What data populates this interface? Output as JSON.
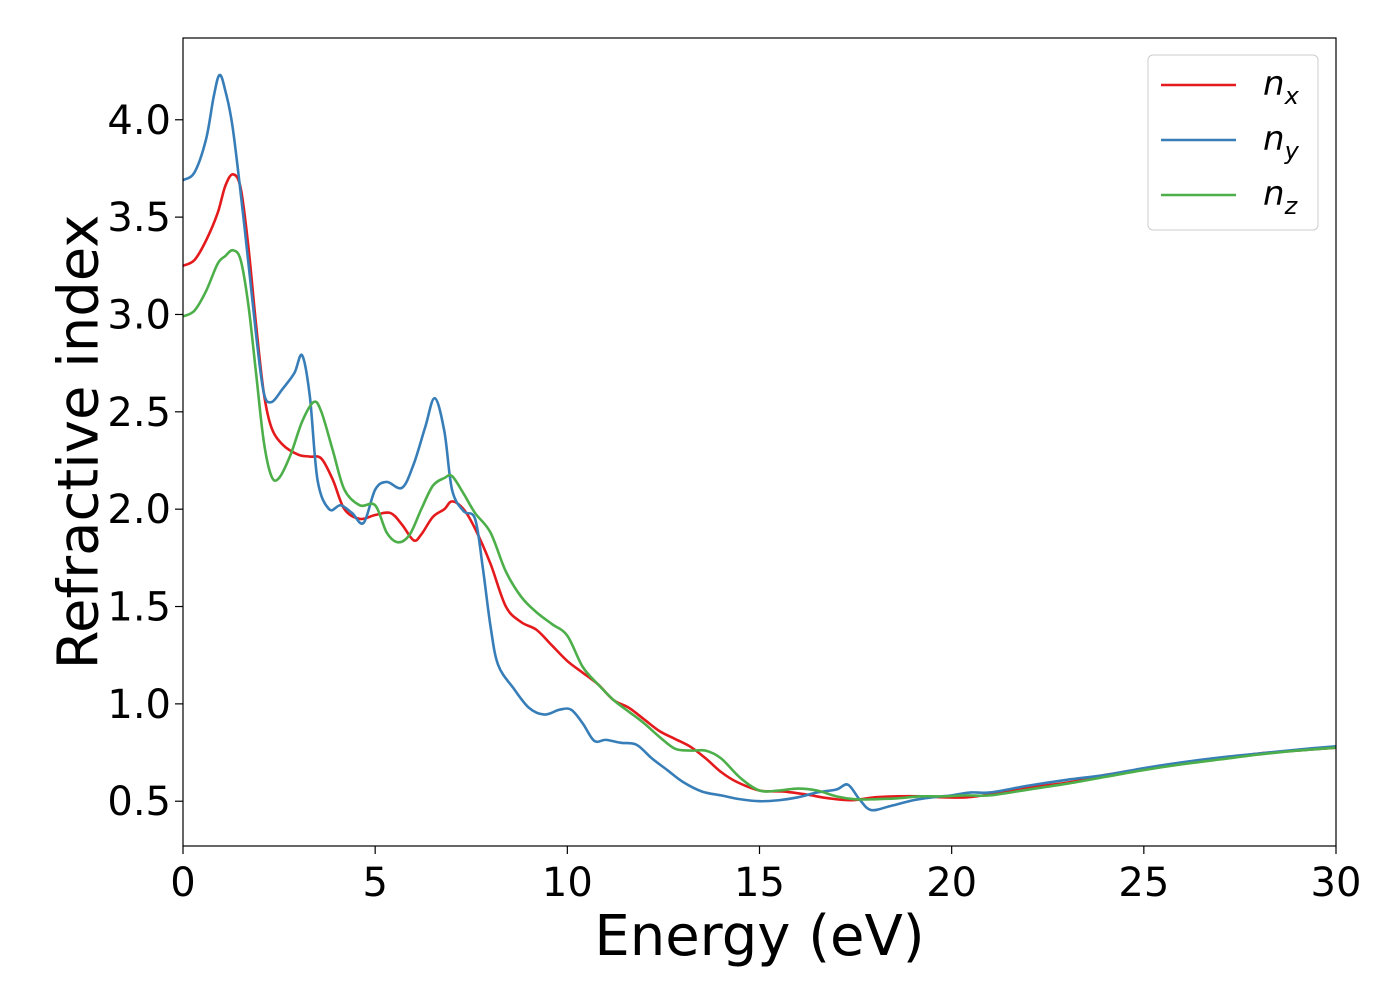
{
  "chart_data": {
    "type": "line",
    "xlabel": "Energy (eV)",
    "ylabel": "Refractive index",
    "xlim": [
      0,
      30
    ],
    "ylim": [
      0.27,
      4.42
    ],
    "xticks": [
      0,
      5,
      10,
      15,
      20,
      25,
      30
    ],
    "yticks": [
      0.5,
      1.0,
      1.5,
      2.0,
      2.5,
      3.0,
      3.5,
      4.0
    ],
    "xtick_labels": [
      "0",
      "5",
      "10",
      "15",
      "20",
      "25",
      "30"
    ],
    "ytick_labels": [
      "0.5",
      "1.0",
      "1.5",
      "2.0",
      "2.5",
      "3.0",
      "3.5",
      "4.0"
    ],
    "grid": false,
    "legend_position": "top-right",
    "series": [
      {
        "name": "n_x",
        "base": "n",
        "sub": "x",
        "color": "#e41a1c",
        "x": [
          0,
          0.3,
          0.6,
          0.9,
          1.1,
          1.3,
          1.5,
          1.7,
          1.9,
          2.1,
          2.3,
          2.6,
          3.0,
          3.3,
          3.6,
          3.9,
          4.2,
          4.6,
          5.0,
          5.4,
          5.7,
          6.0,
          6.2,
          6.5,
          6.8,
          7.0,
          7.3,
          7.6,
          8.0,
          8.4,
          8.8,
          9.2,
          9.6,
          10.0,
          10.4,
          10.8,
          11.2,
          11.6,
          12.0,
          12.4,
          12.8,
          13.2,
          13.6,
          14.0,
          14.4,
          15.0,
          15.6,
          16.2,
          16.8,
          17.4,
          18.0,
          18.6,
          19.2,
          19.8,
          20.4,
          21.0,
          22.0,
          23.0,
          24.0,
          25.0,
          26.0,
          27.0,
          28.0,
          29.0,
          30.0
        ],
        "values": [
          3.25,
          3.28,
          3.38,
          3.52,
          3.66,
          3.72,
          3.65,
          3.35,
          2.95,
          2.6,
          2.42,
          2.33,
          2.28,
          2.27,
          2.26,
          2.15,
          2.0,
          1.95,
          1.97,
          1.98,
          1.92,
          1.84,
          1.87,
          1.96,
          2.0,
          2.04,
          2.0,
          1.9,
          1.72,
          1.5,
          1.42,
          1.38,
          1.3,
          1.22,
          1.16,
          1.1,
          1.02,
          0.98,
          0.92,
          0.86,
          0.82,
          0.78,
          0.72,
          0.65,
          0.6,
          0.555,
          0.55,
          0.535,
          0.515,
          0.505,
          0.52,
          0.525,
          0.525,
          0.52,
          0.52,
          0.535,
          0.57,
          0.595,
          0.635,
          0.665,
          0.695,
          0.72,
          0.745,
          0.76,
          0.775
        ]
      },
      {
        "name": "n_y",
        "base": "n",
        "sub": "y",
        "color": "#377eb8",
        "x": [
          0,
          0.3,
          0.6,
          0.8,
          0.95,
          1.1,
          1.3,
          1.6,
          1.9,
          2.1,
          2.3,
          2.6,
          2.9,
          3.1,
          3.3,
          3.5,
          3.8,
          4.1,
          4.4,
          4.7,
          5.0,
          5.3,
          5.7,
          6.0,
          6.3,
          6.55,
          6.8,
          7.0,
          7.3,
          7.6,
          7.8,
          8.0,
          8.2,
          8.6,
          9.0,
          9.4,
          9.8,
          10.1,
          10.4,
          10.7,
          11.0,
          11.4,
          11.8,
          12.2,
          12.6,
          13.0,
          13.5,
          14.0,
          14.5,
          15.0,
          15.5,
          16.0,
          16.5,
          17.0,
          17.3,
          17.6,
          17.9,
          18.4,
          19.0,
          19.5,
          20.0,
          20.5,
          21.0,
          22.0,
          23.0,
          24.0,
          25.0,
          26.0,
          27.0,
          28.0,
          29.0,
          30.0
        ],
        "values": [
          3.69,
          3.73,
          3.9,
          4.12,
          4.23,
          4.15,
          3.95,
          3.45,
          2.9,
          2.6,
          2.55,
          2.62,
          2.7,
          2.79,
          2.58,
          2.15,
          2.0,
          2.02,
          1.98,
          1.93,
          2.1,
          2.14,
          2.11,
          2.23,
          2.42,
          2.57,
          2.4,
          2.1,
          1.99,
          1.95,
          1.7,
          1.4,
          1.2,
          1.08,
          0.98,
          0.945,
          0.97,
          0.97,
          0.9,
          0.81,
          0.815,
          0.8,
          0.79,
          0.72,
          0.66,
          0.6,
          0.55,
          0.53,
          0.51,
          0.5,
          0.505,
          0.52,
          0.545,
          0.56,
          0.585,
          0.51,
          0.455,
          0.475,
          0.505,
          0.52,
          0.53,
          0.545,
          0.545,
          0.58,
          0.61,
          0.635,
          0.67,
          0.7,
          0.725,
          0.745,
          0.765,
          0.782
        ]
      },
      {
        "name": "n_z",
        "base": "n",
        "sub": "z",
        "color": "#4daf4a",
        "x": [
          0,
          0.3,
          0.6,
          0.9,
          1.1,
          1.3,
          1.5,
          1.7,
          1.9,
          2.1,
          2.3,
          2.5,
          2.8,
          3.1,
          3.4,
          3.6,
          3.9,
          4.2,
          4.6,
          5.0,
          5.3,
          5.6,
          5.9,
          6.2,
          6.5,
          6.8,
          7.0,
          7.3,
          7.6,
          8.0,
          8.4,
          8.8,
          9.2,
          9.6,
          10.0,
          10.4,
          10.8,
          11.2,
          11.6,
          12.0,
          12.4,
          12.8,
          13.2,
          13.6,
          14.0,
          14.5,
          15.0,
          15.5,
          16.0,
          16.5,
          17.0,
          17.5,
          18.0,
          18.6,
          19.2,
          19.8,
          20.4,
          21.0,
          22.0,
          23.0,
          24.0,
          25.0,
          26.0,
          27.0,
          28.0,
          29.0,
          30.0
        ],
        "values": [
          2.99,
          3.02,
          3.12,
          3.26,
          3.3,
          3.33,
          3.28,
          3.05,
          2.7,
          2.35,
          2.17,
          2.16,
          2.28,
          2.45,
          2.55,
          2.5,
          2.3,
          2.1,
          2.02,
          2.02,
          1.88,
          1.83,
          1.87,
          2.0,
          2.12,
          2.16,
          2.17,
          2.08,
          1.98,
          1.88,
          1.68,
          1.55,
          1.47,
          1.41,
          1.35,
          1.19,
          1.1,
          1.02,
          0.96,
          0.9,
          0.83,
          0.77,
          0.76,
          0.76,
          0.72,
          0.62,
          0.555,
          0.555,
          0.565,
          0.555,
          0.525,
          0.51,
          0.51,
          0.515,
          0.525,
          0.525,
          0.53,
          0.53,
          0.56,
          0.59,
          0.625,
          0.66,
          0.69,
          0.715,
          0.74,
          0.76,
          0.775
        ]
      }
    ]
  }
}
